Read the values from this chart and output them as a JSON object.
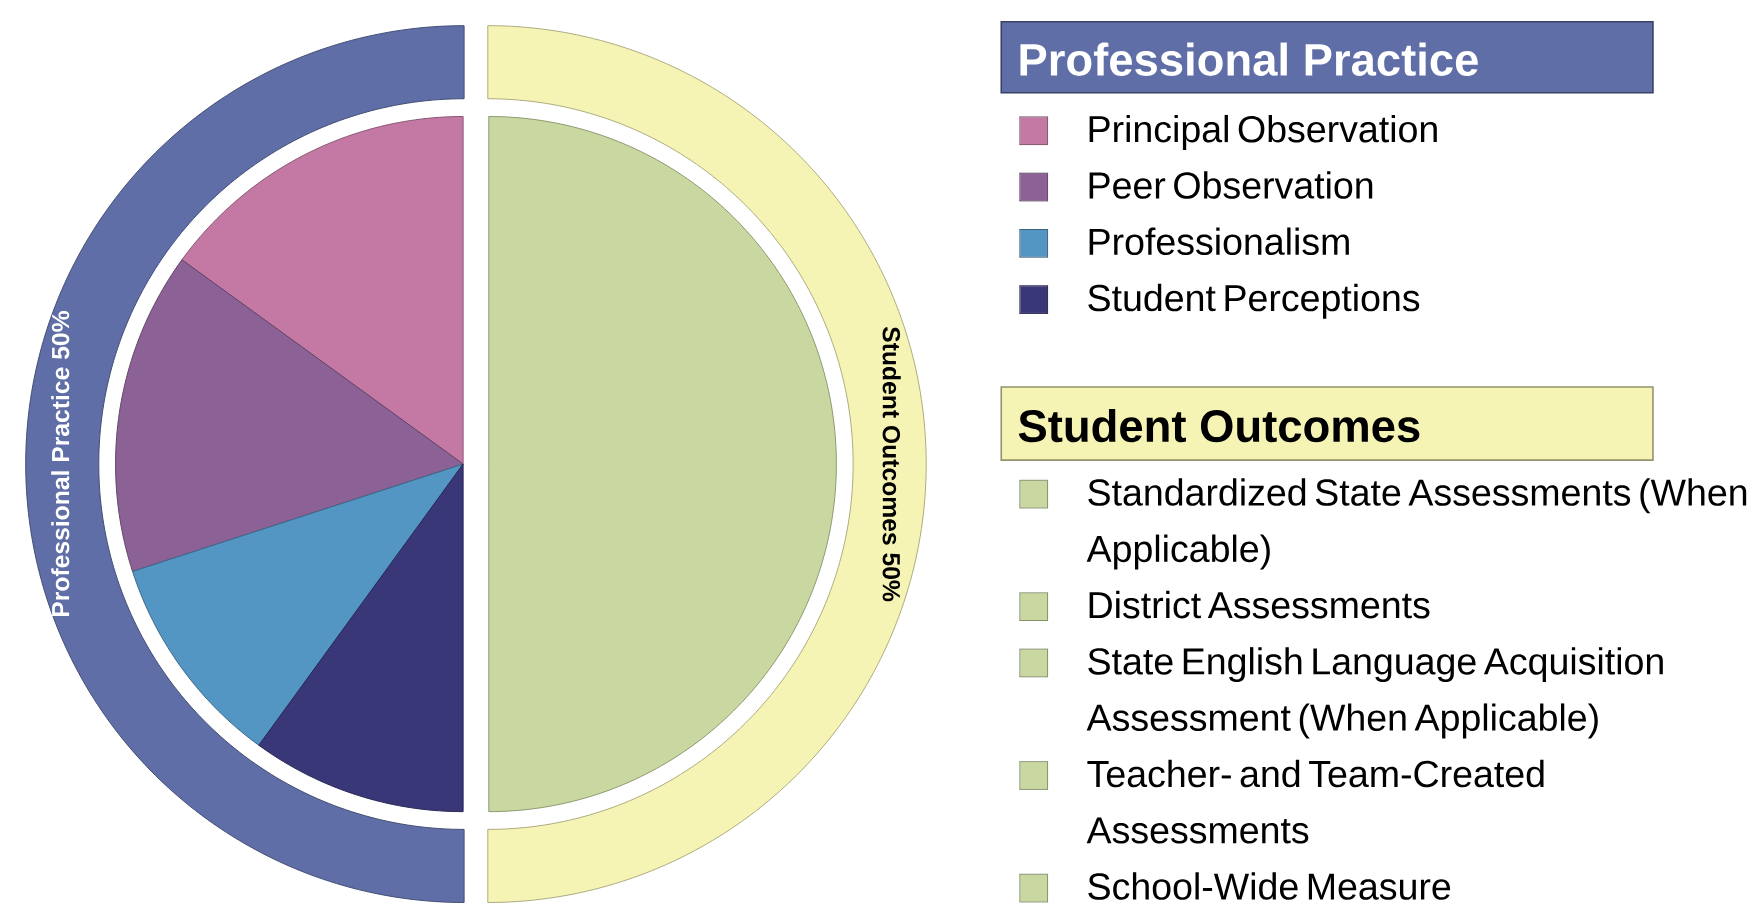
{
  "chart_data": [
    {
      "type": "donut",
      "categories": [
        "Professional Practice 50%",
        "Student Outcomes 50%"
      ],
      "values": [
        50,
        50
      ],
      "colors": [
        "#5f6ea6",
        "#f6f4b4"
      ]
    },
    {
      "type": "pie",
      "legend": "right",
      "legend_title": "Professional Practice",
      "categories": [
        "Principal Observation",
        "Peer Observation",
        "Professionalism",
        "Student Perceptions",
        null
      ],
      "values": [
        15,
        15,
        10,
        10,
        50
      ],
      "colors": [
        "#c379a4",
        "#8c6195",
        "#5496c3",
        "#393778",
        "#c9d8a0"
      ],
      "annotations": [
        "Student Outcomes",
        "Standardized State Assessments (When Applicable)",
        "District Assessments",
        "State English Language Acquisition Assessment (When Applicable)",
        "Teacher- and Team-Created Assessments",
        "School-Wide Measure"
      ]
    }
  ]
}
